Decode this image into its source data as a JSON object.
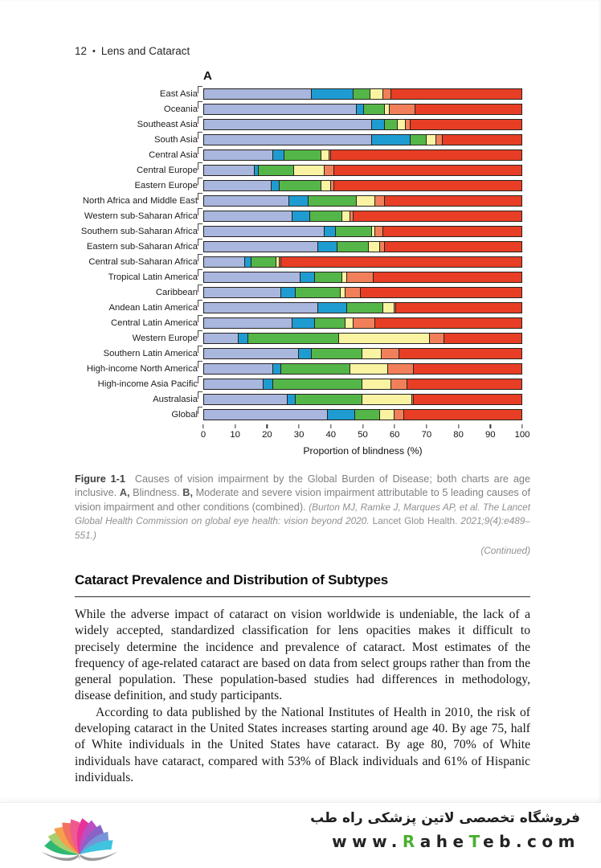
{
  "page_header": {
    "page_number": "12",
    "separator": "•",
    "title": "Lens and Cataract"
  },
  "figure": {
    "panel_label": "A",
    "caption": {
      "label": "Figure 1-1",
      "sentence1": "Causes of vision impairment by the Global Burden of Disease; both charts are age inclusive.",
      "a_label": "A,",
      "a_text": "Blindness.",
      "b_label": "B,",
      "b_text": "Moderate and severe vision impairment attributable to 5 leading causes of vision impairment and other conditions (combined).",
      "cite_italic": "(Burton MJ, Ramke J, Marques AP, et al. The Lancet Global Health Commission on global eye health: vision beyond 2020.",
      "cite_journal": "Lancet Glob Health.",
      "cite_tail": "2021;9(4):e489–551.)",
      "continued": "(Continued)"
    }
  },
  "chart_data": {
    "type": "bar",
    "orientation": "horizontal",
    "stacked": true,
    "xlabel": "Proportion of blindness (%)",
    "xlim": [
      0,
      100
    ],
    "xticks": [
      0,
      10,
      20,
      30,
      40,
      50,
      60,
      70,
      80,
      90,
      100
    ],
    "grid": false,
    "legend_position": "none-visible",
    "categories": [
      "East Asia",
      "Oceania",
      "Southeast Asia",
      "South Asia",
      "Central Asia",
      "Central Europe",
      "Eastern Europe",
      "North Africa and Middle East",
      "Western sub-Saharan Africa",
      "Southern sub-Saharan Africa",
      "Eastern sub-Saharan Africa",
      "Central sub-Saharan Africa",
      "Tropical Latin America",
      "Caribbean",
      "Andean Latin America",
      "Central Latin America",
      "Western Europe",
      "Southern Latin America",
      "High-income North America",
      "High-income Asia Pacific",
      "Australasia",
      "Global"
    ],
    "series": [
      {
        "name": "segment-1-lavender",
        "color": "#a9b6de",
        "values": [
          34,
          48,
          53,
          53,
          22,
          16,
          21.5,
          27,
          28,
          38,
          36,
          13,
          30.5,
          24.5,
          36,
          28,
          11,
          30,
          22,
          19,
          26.5,
          39
        ]
      },
      {
        "name": "segment-2-blue",
        "color": "#1e9cd2",
        "values": [
          13,
          2.5,
          4,
          12,
          3.5,
          1.5,
          2.5,
          6,
          5.5,
          3.5,
          6,
          2,
          4.5,
          4.5,
          9,
          7,
          3,
          4,
          2.5,
          3,
          2.5,
          8.5
        ]
      },
      {
        "name": "segment-3-green",
        "color": "#54b648",
        "values": [
          5.5,
          6.5,
          4,
          5,
          11.5,
          11,
          13,
          15,
          10,
          11.5,
          10,
          8,
          8.5,
          14,
          11.5,
          9.5,
          28.5,
          16,
          21.5,
          28,
          21,
          8
        ]
      },
      {
        "name": "segment-4-yellow",
        "color": "#f9f3a2",
        "values": [
          4,
          1.5,
          2.5,
          3,
          2.5,
          9.5,
          3,
          6,
          2.5,
          1,
          3.5,
          1,
          1.5,
          1.5,
          3.5,
          2.5,
          28.5,
          6,
          12,
          9,
          15.5,
          4.5
        ]
      },
      {
        "name": "segment-5-orange",
        "color": "#f1805a",
        "values": [
          2.5,
          8,
          1.5,
          2,
          0.5,
          3,
          1,
          3,
          1,
          2.5,
          1.5,
          0.5,
          8.5,
          5,
          0.5,
          7,
          4.5,
          5.5,
          8,
          5,
          0.5,
          3
        ]
      },
      {
        "name": "segment-6-red",
        "color": "#e73e25",
        "values": [
          41,
          33.5,
          35,
          25,
          60,
          59,
          59,
          43,
          53,
          43.5,
          43,
          75.5,
          46.5,
          50.5,
          39.5,
          46,
          24.5,
          38.5,
          34,
          36,
          34,
          37
        ]
      }
    ]
  },
  "section": {
    "heading": "Cataract Prevalence and Distribution of Subtypes",
    "paragraphs": [
      "While the adverse impact of cataract on vision worldwide is undeniable, the lack of a widely accepted, standardized classification for lens opacities makes it difficult to precisely determine the incidence and prevalence of cataract. Most estimates of the frequency of age-related cataract are based on data from select groups rather than from the general population. These population-based studies had differences in methodology, disease definition, and study participants.",
      "According to data published by the National Institutes of Health in 2010, the risk of developing cataract in the United States increases starting around age 40. By age 75, half of White individuals in the United States have cataract. By age 80, 70% of White individuals have cataract, compared with 53% of Black individuals and 61% of Hispanic individuals."
    ]
  },
  "footer": {
    "store_name_fa": "فروشگاه تخصصی لاتین پزشکی  راه طب",
    "url_segments": [
      {
        "text": "www.",
        "color": "#232323"
      },
      {
        "text": "R",
        "color": "#4cae31"
      },
      {
        "text": "ahe",
        "color": "#232323"
      },
      {
        "text": "T",
        "color": "#4cae31"
      },
      {
        "text": "eb.com",
        "color": "#232323"
      }
    ],
    "logo_petal_colors": [
      "#2eb873",
      "#a6d06d",
      "#f5a04c",
      "#f2705f",
      "#ef5a8e",
      "#e9319b",
      "#b94fc1",
      "#8a63c6",
      "#7894d8",
      "#3fc3df"
    ],
    "logo_base_color": "#9a9a9a"
  }
}
